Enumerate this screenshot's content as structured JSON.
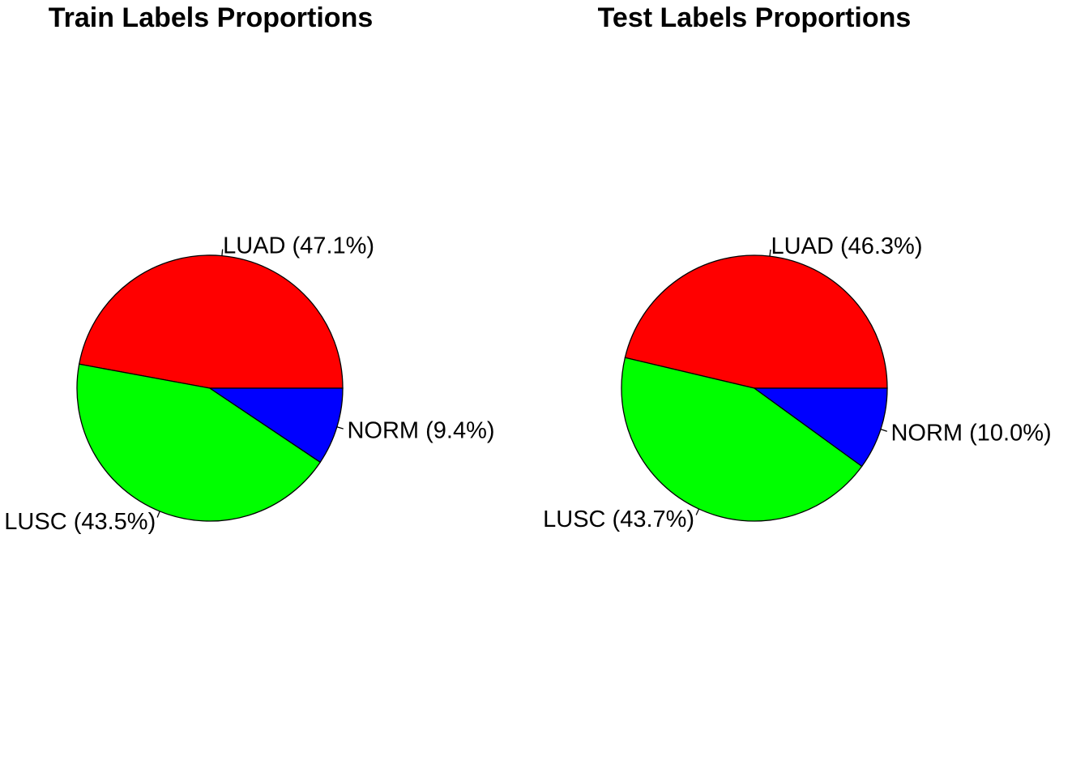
{
  "chart_data": [
    {
      "type": "pie",
      "title": "Train Labels Proportions",
      "slices": [
        {
          "name": "LUAD",
          "value": 47.1,
          "label": "LUAD  (47.1%)",
          "color": "#ff0000"
        },
        {
          "name": "LUSC",
          "value": 43.5,
          "label": "LUSC  (43.5%)",
          "color": "#00ff00"
        },
        {
          "name": "NORM",
          "value": 9.4,
          "label": "NORM  (9.4%)",
          "color": "#0000ff"
        }
      ],
      "direction": "counterclockwise",
      "start_angle_deg": 0
    },
    {
      "type": "pie",
      "title": "Test Labels Proportions",
      "slices": [
        {
          "name": "LUAD",
          "value": 46.3,
          "label": "LUAD  (46.3%)",
          "color": "#ff0000"
        },
        {
          "name": "LUSC",
          "value": 43.7,
          "label": "LUSC  (43.7%)",
          "color": "#00ff00"
        },
        {
          "name": "NORM",
          "value": 10.0,
          "label": "NORM  (10.0%)",
          "color": "#0000ff"
        }
      ],
      "direction": "counterclockwise",
      "start_angle_deg": 0
    }
  ]
}
